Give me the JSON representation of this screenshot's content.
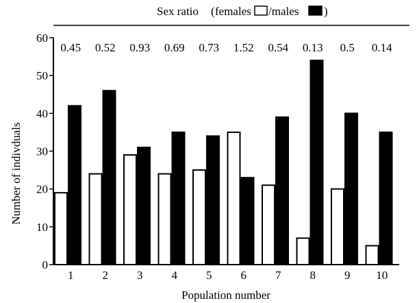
{
  "chart_data": {
    "type": "bar",
    "title": {
      "prefix": "Sex ratio",
      "open_paren": "(",
      "females_label": "females",
      "separator": "/males",
      "close_paren": ")"
    },
    "xlabel": "Population number",
    "ylabel": "Number of indivduals",
    "categories": [
      "1",
      "2",
      "3",
      "4",
      "5",
      "6",
      "7",
      "8",
      "9",
      "10"
    ],
    "ratio_labels": [
      "0.45",
      "0.52",
      "0.93",
      "0.69",
      "0.73",
      "1.52",
      "0.54",
      "0.13",
      "0.5",
      "0.14"
    ],
    "series": [
      {
        "name": "females",
        "fill": "#ffffff",
        "values": [
          19,
          24,
          29,
          24,
          25,
          35,
          21,
          7,
          20,
          5
        ]
      },
      {
        "name": "males",
        "fill": "#000000",
        "values": [
          42,
          46,
          31,
          35,
          34,
          23,
          39,
          54,
          40,
          35
        ]
      }
    ],
    "ylim": [
      0,
      60
    ],
    "yticks": [
      "0",
      "10",
      "20",
      "30",
      "40",
      "50",
      "60"
    ],
    "grid": false,
    "legend": "top"
  }
}
